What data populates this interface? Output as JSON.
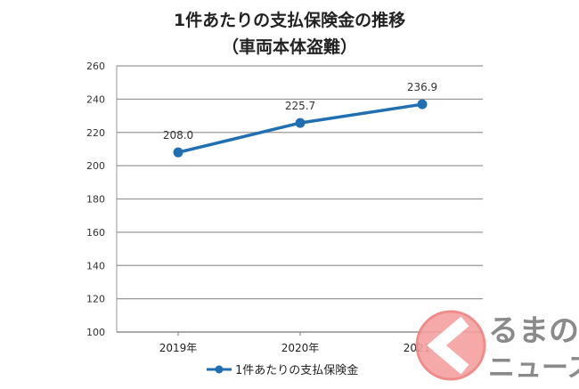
{
  "chart_data": {
    "type": "line",
    "title": "1件あたりの支払保険金の推移",
    "subtitle": "（車両本体盗難）",
    "categories": [
      "2019年",
      "2020年",
      "2021年"
    ],
    "series": [
      {
        "name": "1件あたりの支払保険金",
        "values": [
          208.0,
          225.7,
          236.9
        ],
        "labels": [
          "208.0",
          "225.7",
          "236.9"
        ],
        "color": "#1f6fb2"
      }
    ],
    "ylim": [
      100,
      260
    ],
    "yticks": [
      "100",
      "120",
      "140",
      "160",
      "180",
      "200",
      "220",
      "240",
      "260"
    ],
    "grid": true,
    "legend": "bottom",
    "xlabel": "",
    "ylabel": ""
  },
  "logo": {
    "text": "くるまのニュース",
    "color": "#f08080"
  }
}
